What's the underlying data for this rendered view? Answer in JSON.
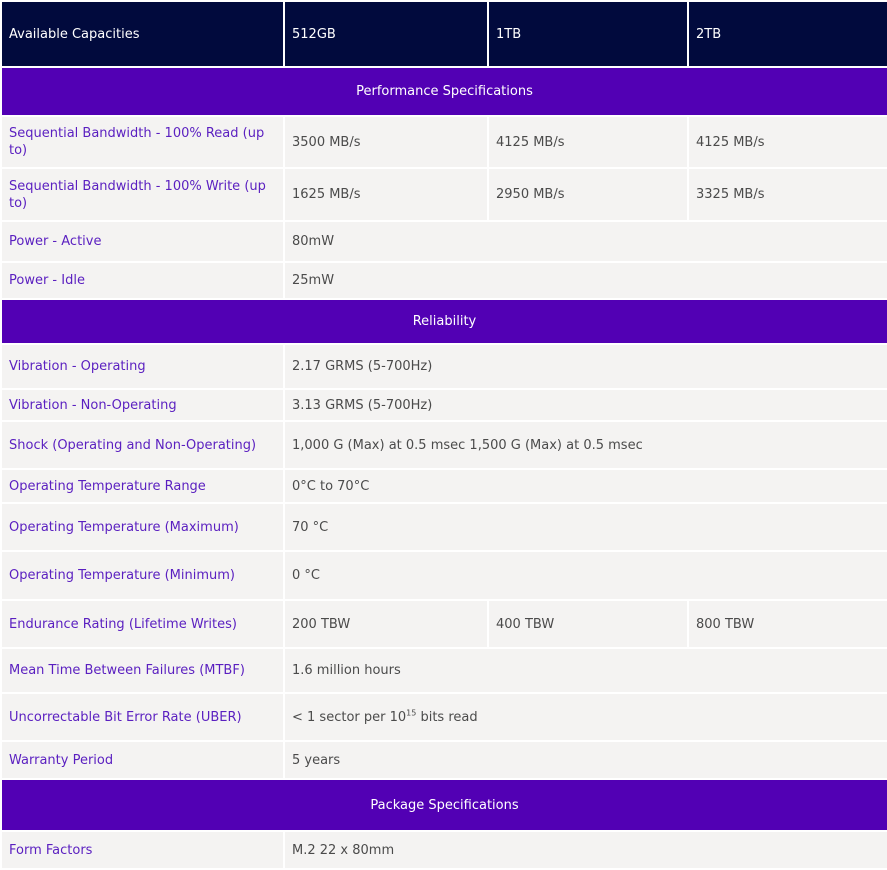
{
  "header": {
    "label": "Available Capacities",
    "capacities": [
      "512GB",
      "1TB",
      "2TB"
    ]
  },
  "sections": {
    "performance": {
      "title": "Performance Specifications",
      "rows": [
        {
          "label": "Sequential Bandwidth - 100% Read (up to)",
          "values": [
            "3500 MB/s",
            "4125 MB/s",
            "4125 MB/s"
          ]
        },
        {
          "label": "Sequential Bandwidth - 100% Write (up to)",
          "values": [
            "1625 MB/s",
            "2950 MB/s",
            "3325 MB/s"
          ]
        },
        {
          "label": "Power - Active",
          "value": "80mW"
        },
        {
          "label": "Power - Idle",
          "value": "25mW"
        }
      ]
    },
    "reliability": {
      "title": "Reliability",
      "rows": [
        {
          "label": "Vibration - Operating",
          "value": "2.17 GRMS (5-700Hz)"
        },
        {
          "label": "Vibration - Non-Operating",
          "value": "3.13 GRMS (5-700Hz)"
        },
        {
          "label": "Shock (Operating and Non-Operating)",
          "value": "1,000 G (Max) at 0.5 msec 1,500 G (Max) at 0.5 msec"
        },
        {
          "label": "Operating Temperature Range",
          "value": "0°C to 70°C"
        },
        {
          "label": "Operating Temperature (Maximum)",
          "value": "70 °C"
        },
        {
          "label": "Operating Temperature (Minimum)",
          "value": "0 °C"
        },
        {
          "label": "Endurance Rating (Lifetime Writes)",
          "values": [
            "200 TBW",
            "400 TBW",
            "800 TBW"
          ]
        },
        {
          "label": "Mean Time Between Failures (MTBF)",
          "value": "1.6 million hours"
        },
        {
          "label": "Uncorrectable Bit Error Rate (UBER)",
          "value_pre": "< 1 sector per 10",
          "value_sup": "15",
          "value_post": " bits read"
        },
        {
          "label": "Warranty Period",
          "value": "5 years"
        }
      ]
    },
    "package": {
      "title": "Package Specifications",
      "rows": [
        {
          "label": "Form Factors",
          "value": "M.2 22 x 80mm"
        }
      ]
    }
  },
  "colors": {
    "header_bg": "#010a3d",
    "section_bg": "#5200b4",
    "row_bg": "#f4f3f2",
    "label_text": "#5a1fc0"
  }
}
